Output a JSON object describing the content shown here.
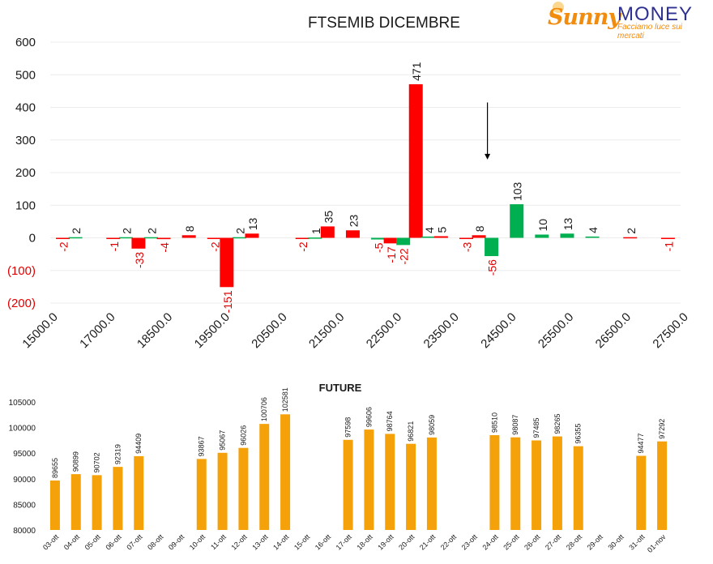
{
  "logo": {
    "name_part1": "Sunny",
    "name_part2": "MONEY",
    "tagline": "Facciamo luce sui mercati"
  },
  "colors": {
    "positive": "#00b050",
    "negative": "#ff0000",
    "future_bar": "#f5a10a",
    "text": "#1a1a1a",
    "neg_axis_label": "#e00000"
  },
  "chart_data": [
    {
      "type": "bar",
      "title": "FTSEMIB DICEMBRE",
      "ylim": [
        -200,
        600
      ],
      "yticks": [
        {
          "v": 600,
          "label": "600"
        },
        {
          "v": 500,
          "label": "500"
        },
        {
          "v": 400,
          "label": "400"
        },
        {
          "v": 300,
          "label": "300"
        },
        {
          "v": 200,
          "label": "200"
        },
        {
          "v": 100,
          "label": "100"
        },
        {
          "v": 0,
          "label": "0"
        },
        {
          "v": -100,
          "label": "(100)"
        },
        {
          "v": -200,
          "label": "(200)"
        }
      ],
      "xlim": [
        15000,
        27500
      ],
      "xtick_labels": [
        "15000.0",
        "17000.0",
        "18500.0",
        "19500.0",
        "20500.0",
        "21500.0",
        "22500.0",
        "23500.0",
        "24500.0",
        "25500.0",
        "26500.0",
        "27500.0"
      ],
      "bars": [
        {
          "x": 15250,
          "value": -2,
          "label": "-2"
        },
        {
          "x": 15500,
          "value": 2,
          "label": "2"
        },
        {
          "x": 16250,
          "value": -1,
          "label": "-1"
        },
        {
          "x": 16500,
          "value": 2,
          "label": "2"
        },
        {
          "x": 16750,
          "value": -33,
          "label": "-33"
        },
        {
          "x": 17000,
          "value": 2,
          "label": "2"
        },
        {
          "x": 17250,
          "value": -4,
          "label": "-4"
        },
        {
          "x": 17750,
          "value": 8,
          "label": "8"
        },
        {
          "x": 18250,
          "value": -2,
          "label": "-2"
        },
        {
          "x": 18500,
          "value": -151,
          "label": "-151"
        },
        {
          "x": 18750,
          "value": 2,
          "label": "2"
        },
        {
          "x": 19000,
          "value": 13,
          "label": "13"
        },
        {
          "x": 20000,
          "value": -2,
          "label": "-2"
        },
        {
          "x": 20250,
          "value": 1,
          "label": "1"
        },
        {
          "x": 20500,
          "value": 35,
          "label": "35"
        },
        {
          "x": 21000,
          "value": 23,
          "label": "23"
        },
        {
          "x": 21500,
          "value": -5,
          "label": "-5"
        },
        {
          "x": 21750,
          "value": -17,
          "label": "-17"
        },
        {
          "x": 22000,
          "value": -22,
          "label": "-22"
        },
        {
          "x": 22250,
          "value": 471,
          "label": "471"
        },
        {
          "x": 22500,
          "value": 4,
          "label": "4"
        },
        {
          "x": 22750,
          "value": 5,
          "label": "5"
        },
        {
          "x": 23250,
          "value": -3,
          "label": "-3"
        },
        {
          "x": 23500,
          "value": 8,
          "label": "8"
        },
        {
          "x": 23750,
          "value": -56,
          "label": "-56"
        },
        {
          "x": 24250,
          "value": 103,
          "label": "103"
        },
        {
          "x": 24750,
          "value": 10,
          "label": "10"
        },
        {
          "x": 25250,
          "value": 13,
          "label": "13"
        },
        {
          "x": 25750,
          "value": 4,
          "label": "4"
        },
        {
          "x": 26500,
          "value": 2,
          "label": "2"
        },
        {
          "x": 27250,
          "value": -1,
          "label": "-1"
        }
      ],
      "annotation": {
        "type": "arrow",
        "x": 23750,
        "y_from": 415,
        "y_to": 240
      }
    },
    {
      "type": "bar",
      "title": "FUTURE",
      "ylim": [
        80000,
        105000
      ],
      "yticks": [
        {
          "v": 80000,
          "label": "80000"
        },
        {
          "v": 85000,
          "label": "85000"
        },
        {
          "v": 90000,
          "label": "90000"
        },
        {
          "v": 95000,
          "label": "95000"
        },
        {
          "v": 100000,
          "label": "100000"
        },
        {
          "v": 105000,
          "label": "105000"
        }
      ],
      "categories": [
        "03-ott",
        "04-ott",
        "05-ott",
        "06-ott",
        "07-ott",
        "08-ott",
        "09-ott",
        "10-ott",
        "11-ott",
        "12-ott",
        "13-ott",
        "14-ott",
        "15-ott",
        "16-ott",
        "17-ott",
        "18-ott",
        "19-ott",
        "20-ott",
        "21-ott",
        "22-ott",
        "23-ott",
        "24-ott",
        "25-ott",
        "26-ott",
        "27-ott",
        "28-ott",
        "29-ott",
        "30-ott",
        "31-ott",
        "01-nov"
      ],
      "values": [
        89655,
        90899,
        90702,
        92319,
        94409,
        null,
        null,
        93867,
        95067,
        96026,
        100706,
        102581,
        null,
        null,
        97598,
        99606,
        98764,
        96821,
        98059,
        null,
        null,
        98510,
        98087,
        97485,
        98265,
        96355,
        null,
        null,
        94477,
        97292
      ]
    }
  ]
}
